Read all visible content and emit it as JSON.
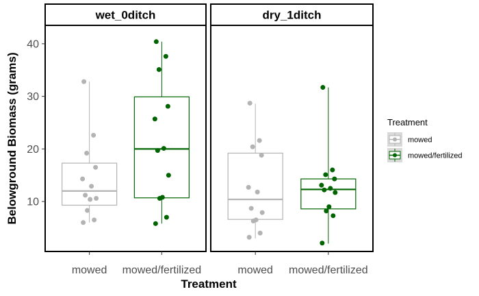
{
  "chart_data": {
    "type": "boxplot",
    "facets": [
      "wet_0ditch",
      "dry_1ditch"
    ],
    "categories": [
      "mowed",
      "mowed/fertilized"
    ],
    "xlabel": "Treatment",
    "ylabel": "Belowground Biomass (grams)",
    "ylim": [
      0.5,
      43.5
    ],
    "yticks": [
      10,
      20,
      30,
      40
    ],
    "legend": {
      "title": "Treatment",
      "position": "right",
      "entries": [
        {
          "label": "mowed",
          "color": "#b3b3b3"
        },
        {
          "label": "mowed/fertilized",
          "color": "#006400"
        }
      ]
    },
    "colors": {
      "mowed": "#b3b3b3",
      "mowed/fertilized": "#006400"
    },
    "panels": [
      {
        "facet": "wet_0ditch",
        "groups": [
          {
            "treatment": "mowed",
            "box": {
              "q1": 9.3,
              "median": 12.0,
              "q3": 17.3,
              "whisker_low": 6.0,
              "whisker_high": 32.8
            },
            "points": [
              32.8,
              22.6,
              19.2,
              16.5,
              14.3,
              12.9,
              11.2,
              10.6,
              10.4,
              8.3,
              6.5,
              6.0
            ]
          },
          {
            "treatment": "mowed/fertilized",
            "box": {
              "q1": 10.7,
              "median": 20.0,
              "q3": 29.9,
              "whisker_low": 5.8,
              "whisker_high": 40.4
            },
            "points": [
              40.4,
              37.6,
              35.1,
              28.1,
              25.7,
              20.1,
              19.7,
              15.0,
              10.8,
              10.6,
              7.0,
              5.8
            ]
          }
        ]
      },
      {
        "facet": "dry_1ditch",
        "groups": [
          {
            "treatment": "mowed",
            "box": {
              "q1": 6.6,
              "median": 10.4,
              "q3": 19.2,
              "whisker_low": 3.0,
              "whisker_high": 28.6
            },
            "points": [
              28.7,
              21.6,
              20.4,
              18.8,
              12.7,
              11.8,
              8.7,
              7.9,
              6.5,
              6.3,
              4.0,
              3.2
            ]
          },
          {
            "treatment": "mowed/fertilized",
            "box": {
              "q1": 8.6,
              "median": 12.3,
              "q3": 14.3,
              "whisker_low": 2.0,
              "whisker_high": 31.7
            },
            "points": [
              31.7,
              16.0,
              15.1,
              14.3,
              13.1,
              12.5,
              12.2,
              11.7,
              9.0,
              8.2,
              7.3,
              2.1
            ]
          }
        ]
      }
    ]
  }
}
